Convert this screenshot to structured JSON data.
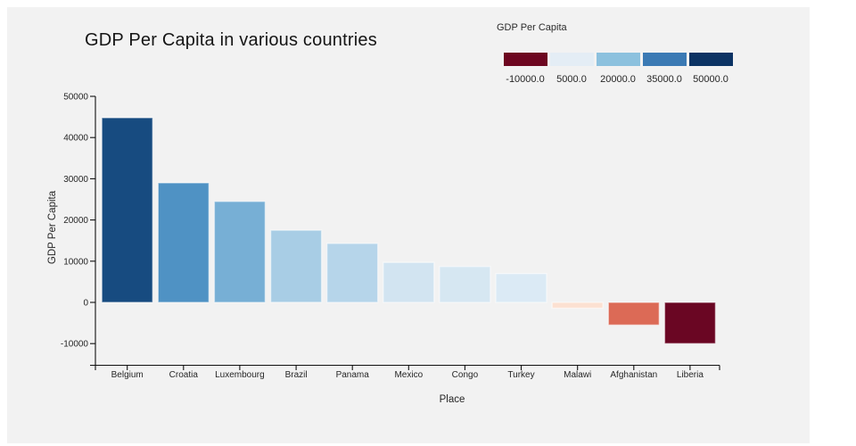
{
  "title": "GDP Per Capita in various countries",
  "legend": {
    "title": "GDP Per Capita",
    "stops": [
      {
        "label": "-10000.0",
        "color": "#6d0620"
      },
      {
        "label": "5000.0",
        "color": "#e4edf5"
      },
      {
        "label": "20000.0",
        "color": "#8cc1de"
      },
      {
        "label": "35000.0",
        "color": "#3b7ab4"
      },
      {
        "label": "50000.0",
        "color": "#0c3364"
      }
    ]
  },
  "chart_data": {
    "type": "bar",
    "title": "GDP Per Capita in various countries",
    "xlabel": "Place",
    "ylabel": "GDP Per Capita",
    "categories": [
      "Belgium",
      "Croatia",
      "Luxembourg",
      "Brazil",
      "Panama",
      "Mexico",
      "Congo",
      "Turkey",
      "Malawi",
      "Afghanistan",
      "Liberia"
    ],
    "values": [
      44800,
      29000,
      24500,
      17500,
      14300,
      9700,
      8700,
      7000,
      -1400,
      -5500,
      -10000
    ],
    "bar_colors": [
      "#174b80",
      "#4f92c4",
      "#77afd5",
      "#a8cde5",
      "#b6d5ea",
      "#d2e4f1",
      "#d6e7f2",
      "#dbeaf5",
      "#fce1d2",
      "#dc6a56",
      "#6a0623"
    ],
    "y_ticks": [
      50000,
      40000,
      30000,
      20000,
      10000,
      0,
      -10000
    ],
    "ylim": [
      -15200,
      50000
    ],
    "grid": false,
    "legend_position": "top-right",
    "colormap": "RdBu",
    "color_scale_domain": [
      -10000,
      50000
    ]
  },
  "colors": {
    "page_background": "#ffffff",
    "canvas_background": "#f2f2f2",
    "axis_line": "#111111",
    "tick_text": "#262626"
  }
}
